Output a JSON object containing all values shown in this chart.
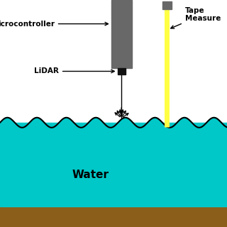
{
  "background_color": "#ffffff",
  "water_color": "#00C8C8",
  "water_outline_color": "#000000",
  "ground_color": "#8B5E1A",
  "device_color": "#686868",
  "tape_color": "#FFFF44",
  "text_color": "#000000",
  "fig_width": 3.2,
  "fig_height": 3.2,
  "dpi": 100,
  "microcontroller_label": "icrocontroller",
  "lidar_label": "LiDAR",
  "tape_label": "Tape\nMeasure",
  "water_label": "Water"
}
